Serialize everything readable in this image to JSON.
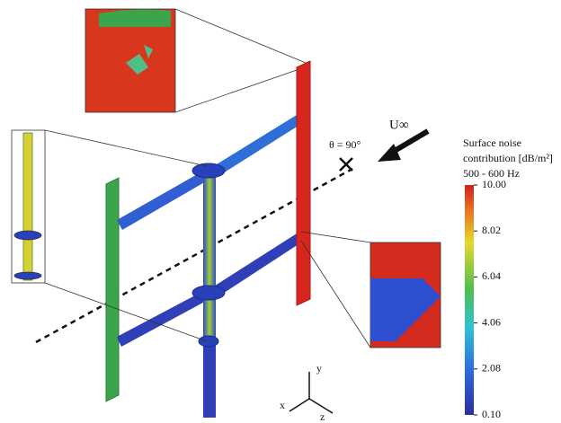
{
  "annotations": {
    "freestream": "U∞",
    "angle": "θ = 90°"
  },
  "axes_triad": {
    "x": "x",
    "y": "y",
    "z": "z"
  },
  "colorbar": {
    "title": [
      "Surface noise",
      "contribution [dB/m²]",
      "500 - 600 Hz"
    ],
    "range": [
      0.1,
      10
    ],
    "ticks": [
      {
        "value": 10,
        "label": "10.00"
      },
      {
        "value": 8.02,
        "label": "8.02"
      },
      {
        "value": 6.04,
        "label": "6.04"
      },
      {
        "value": 4.06,
        "label": "4.06"
      },
      {
        "value": 2.08,
        "label": "2.08"
      },
      {
        "value": 0.1,
        "label": "0.10"
      }
    ]
  }
}
